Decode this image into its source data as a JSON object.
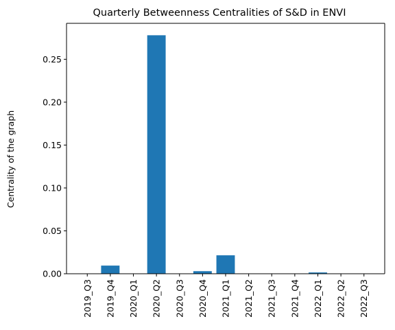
{
  "chart_data": {
    "type": "bar",
    "title": "Quarterly Betweenness Centralities of S&D in ENVI",
    "xlabel": "",
    "ylabel": "Centrality of the graph",
    "categories": [
      "2019_Q3",
      "2019_Q4",
      "2020_Q1",
      "2020_Q2",
      "2020_Q3",
      "2020_Q4",
      "2021_Q1",
      "2021_Q2",
      "2021_Q3",
      "2021_Q4",
      "2022_Q1",
      "2022_Q2",
      "2022_Q3"
    ],
    "values": [
      0.0,
      0.0095,
      0.0,
      0.278,
      0.0,
      0.003,
      0.0215,
      0.0,
      0.0,
      0.0,
      0.0015,
      0.0,
      0.0
    ],
    "ylim": [
      0,
      0.2919
    ],
    "yticks": [
      0.0,
      0.05,
      0.1,
      0.15,
      0.2,
      0.25
    ],
    "ytick_labels": [
      "0.00",
      "0.05",
      "0.10",
      "0.15",
      "0.20",
      "0.25"
    ],
    "grid": false,
    "legend": "none",
    "colors": {
      "bar": "#1f77b4",
      "axis": "#000000"
    }
  }
}
